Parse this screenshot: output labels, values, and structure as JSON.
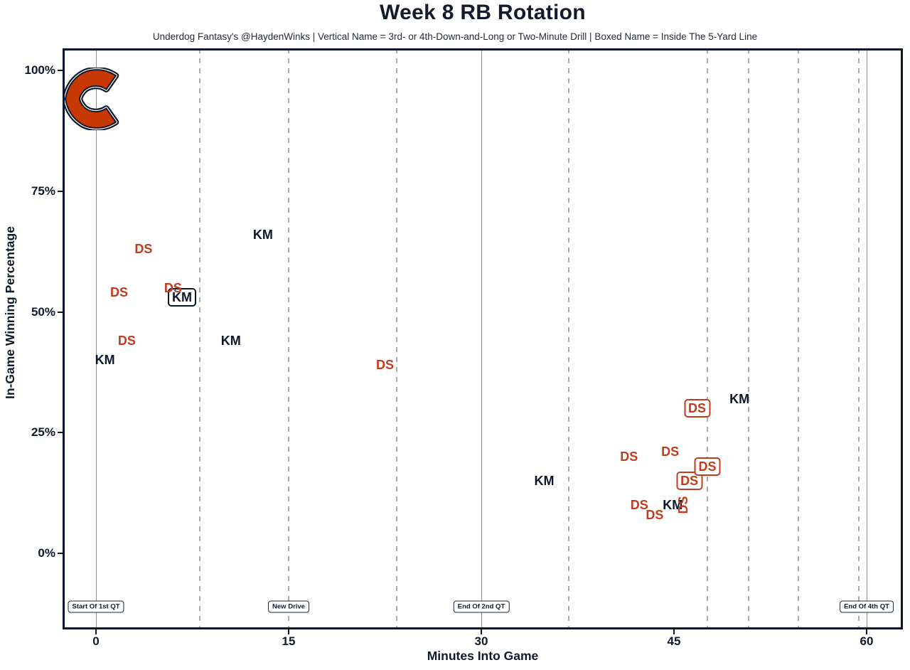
{
  "header": {
    "title": "Week 8 RB Rotation",
    "subtitle": "Underdog Fantasy's @HaydenWinks | Vertical Name = 3rd- or 4th-Down-and-Long or Two-Minute Drill | Boxed Name = Inside The 5-Yard Line"
  },
  "axes": {
    "x_label": "Minutes Into Game",
    "y_label": "In-Game Winning Percentage"
  },
  "colors": {
    "ds_red": "#c23b1d",
    "km_navy": "#0b162a",
    "logo_orange": "#c83803",
    "logo_navy": "#0b162a",
    "grid_solid": "#8f8f8f",
    "grid_dashed": "#adadad",
    "plot_border": "#0b162a",
    "text_dark": "#10182b"
  },
  "logo": {
    "team": "Chicago Bears",
    "letter": "C"
  },
  "chart_data": {
    "type": "scatter",
    "title": "Week 8 RB Rotation",
    "xlabel": "Minutes Into Game",
    "ylabel": "In-Game Winning Percentage",
    "x_ticks": [
      0,
      15,
      30,
      45,
      60
    ],
    "y_ticks_pct": [
      0,
      25,
      50,
      75,
      100
    ],
    "xlim": [
      -2.6,
      62.8
    ],
    "ylim": [
      -15.7,
      104.5
    ],
    "grid": {
      "solid_vlines_min": [
        0,
        30,
        60
      ],
      "dashed_vlines_min": [
        8.1,
        15,
        23.4,
        36.8,
        47.6,
        50.8,
        54.7,
        59.4
      ]
    },
    "milestones": [
      {
        "label": "Start Of 1st QT",
        "min": 0
      },
      {
        "label": "New Drive",
        "min": 15
      },
      {
        "label": "End Of 2nd QT",
        "min": 30
      },
      {
        "label": "End Of 4th QT",
        "min": 60
      }
    ],
    "series": [
      {
        "name": "KM",
        "color": "#0b162a",
        "points": [
          {
            "min": 0.7,
            "win_pct": 40,
            "boxed": false,
            "vertical": false
          },
          {
            "min": 6.7,
            "win_pct": 53,
            "boxed": true,
            "vertical": false
          },
          {
            "min": 13.0,
            "win_pct": 66,
            "boxed": false,
            "vertical": false
          },
          {
            "min": 10.5,
            "win_pct": 44,
            "boxed": false,
            "vertical": false
          },
          {
            "min": 34.9,
            "win_pct": 15,
            "boxed": false,
            "vertical": false
          },
          {
            "min": 50.1,
            "win_pct": 32,
            "boxed": false,
            "vertical": false
          },
          {
            "min": 44.9,
            "win_pct": 10,
            "boxed": false,
            "vertical": false
          }
        ]
      },
      {
        "name": "DS",
        "color": "#c23b1d",
        "points": [
          {
            "min": 3.7,
            "win_pct": 63,
            "boxed": false,
            "vertical": false
          },
          {
            "min": 1.8,
            "win_pct": 54,
            "boxed": false,
            "vertical": false
          },
          {
            "min": 6.0,
            "win_pct": 55,
            "boxed": false,
            "vertical": false
          },
          {
            "min": 2.4,
            "win_pct": 44,
            "boxed": false,
            "vertical": false
          },
          {
            "min": 22.5,
            "win_pct": 39,
            "boxed": false,
            "vertical": false
          },
          {
            "min": 41.5,
            "win_pct": 20,
            "boxed": false,
            "vertical": false
          },
          {
            "min": 44.7,
            "win_pct": 21,
            "boxed": false,
            "vertical": false
          },
          {
            "min": 42.3,
            "win_pct": 10,
            "boxed": false,
            "vertical": false
          },
          {
            "min": 43.5,
            "win_pct": 8,
            "boxed": false,
            "vertical": false
          },
          {
            "min": 45.7,
            "win_pct": 10,
            "boxed": false,
            "vertical": true
          },
          {
            "min": 46.8,
            "win_pct": 30,
            "boxed": true,
            "vertical": false
          },
          {
            "min": 46.2,
            "win_pct": 15,
            "boxed": true,
            "vertical": false
          },
          {
            "min": 47.6,
            "win_pct": 18,
            "boxed": true,
            "vertical": false
          }
        ]
      }
    ]
  }
}
